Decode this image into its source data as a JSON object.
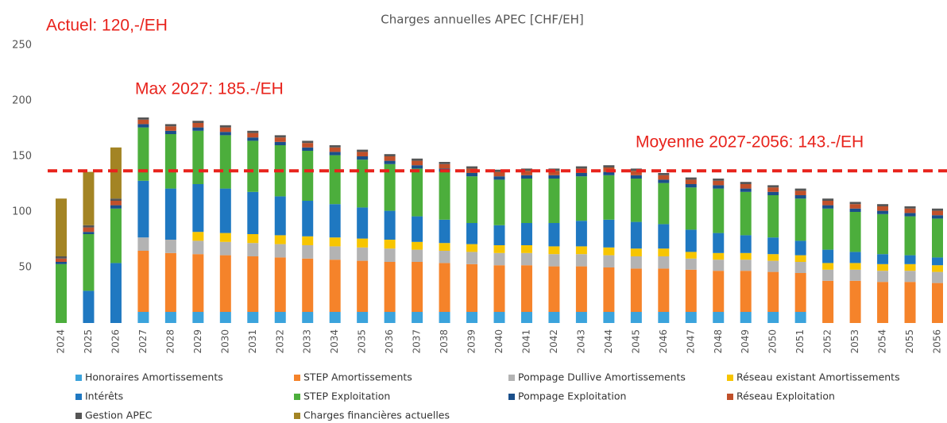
{
  "chart_data": {
    "type": "stacked_bar",
    "title": "Charges annuelles APEC [CHF/EH]",
    "annotations": [
      "Actuel: 120,-/EH",
      "Max 2027: 185.-/EH",
      "Moyenne 2027-2056: 143.-/EH"
    ],
    "reference_line": {
      "value": 137,
      "color": "#e8231c"
    },
    "categories": [
      "2024",
      "2025",
      "2026",
      "2027",
      "2028",
      "2029",
      "2030",
      "2031",
      "2032",
      "2033",
      "2034",
      "2035",
      "2036",
      "2037",
      "2038",
      "2039",
      "2040",
      "2041",
      "2042",
      "2043",
      "2044",
      "2045",
      "2046",
      "2047",
      "2048",
      "2049",
      "2050",
      "2051",
      "2052",
      "2053",
      "2054",
      "2055",
      "2056"
    ],
    "ylim": [
      0,
      250
    ],
    "yticks": [
      50,
      100,
      150,
      200,
      250
    ],
    "grid": false,
    "legend": "bottom",
    "series": [
      {
        "name": "Honoraires Amortissements",
        "color": "#3ba3dc",
        "values": [
          0,
          0,
          0,
          10,
          10,
          10,
          10,
          10,
          10,
          10,
          10,
          10,
          10,
          10,
          10,
          10,
          10,
          10,
          10,
          10,
          10,
          10,
          10,
          10,
          10,
          10,
          10,
          10,
          0,
          0,
          0,
          0,
          0
        ]
      },
      {
        "name": "STEP Amortissements",
        "color": "#f5832a",
        "values": [
          0,
          0,
          0,
          55,
          53,
          52,
          51,
          50,
          49,
          48,
          47,
          46,
          45,
          45,
          44,
          43,
          42,
          42,
          41,
          41,
          40,
          39,
          39,
          38,
          37,
          37,
          36,
          35,
          38,
          38,
          37,
          37,
          36
        ]
      },
      {
        "name": "Pompage Dullive Amortissements",
        "color": "#b3b3b3",
        "values": [
          0,
          0,
          0,
          12,
          12,
          12,
          12,
          12,
          12,
          12,
          12,
          12,
          12,
          11,
          11,
          11,
          11,
          11,
          11,
          11,
          11,
          11,
          11,
          10,
          10,
          10,
          10,
          10,
          10,
          10,
          10,
          10,
          10
        ]
      },
      {
        "name": "Réseau existant Amortissements",
        "color": "#f7c500",
        "values": [
          0,
          0,
          0,
          0,
          0,
          8,
          8,
          8,
          8,
          8,
          8,
          8,
          8,
          7,
          7,
          7,
          7,
          7,
          7,
          7,
          7,
          7,
          7,
          6,
          6,
          6,
          6,
          6,
          6,
          6,
          6,
          6,
          6
        ]
      },
      {
        "name": "Intérêts",
        "color": "#1f78c1",
        "values": [
          0,
          29,
          54,
          51,
          46,
          43,
          40,
          38,
          35,
          32,
          30,
          28,
          26,
          23,
          21,
          19,
          18,
          20,
          21,
          23,
          25,
          24,
          22,
          20,
          18,
          16,
          15,
          13,
          12,
          10,
          9,
          8,
          7
        ]
      },
      {
        "name": "STEP Exploitation",
        "color": "#4cae3c",
        "values": [
          53,
          51,
          49,
          48,
          49,
          48,
          48,
          46,
          46,
          45,
          44,
          43,
          42,
          43,
          43,
          42,
          41,
          40,
          40,
          40,
          40,
          39,
          37,
          38,
          40,
          39,
          38,
          38,
          37,
          36,
          36,
          35,
          35
        ]
      },
      {
        "name": "Pompage Exploitation",
        "color": "#1a4f8a",
        "values": [
          2,
          2,
          3,
          3,
          3,
          3,
          3,
          3,
          3,
          3,
          3,
          3,
          3,
          3,
          3,
          3,
          3,
          3,
          3,
          3,
          3,
          3,
          3,
          3,
          3,
          3,
          3,
          3,
          3,
          3,
          3,
          3,
          3
        ]
      },
      {
        "name": "Réseau Exploitation",
        "color": "#c0502a",
        "values": [
          3,
          4,
          4,
          4,
          4,
          4,
          4,
          4,
          4,
          4,
          4,
          4,
          4,
          4,
          4,
          4,
          4,
          4,
          4,
          4,
          4,
          4,
          4,
          4,
          4,
          4,
          4,
          4,
          4,
          4,
          4,
          4,
          4
        ]
      },
      {
        "name": "Gestion APEC",
        "color": "#555555",
        "values": [
          2,
          2,
          2,
          2,
          2,
          2,
          2,
          2,
          2,
          2,
          2,
          2,
          2,
          2,
          2,
          2,
          2,
          2,
          2,
          2,
          2,
          2,
          2,
          2,
          2,
          2,
          2,
          2,
          2,
          2,
          2,
          2,
          2
        ]
      },
      {
        "name": "Charges financières actuelles",
        "color": "#a38424",
        "values": [
          52,
          48,
          46,
          0,
          0,
          0,
          0,
          0,
          0,
          0,
          0,
          0,
          0,
          0,
          0,
          0,
          0,
          0,
          0,
          0,
          0,
          0,
          0,
          0,
          0,
          0,
          0,
          0,
          0,
          0,
          0,
          0,
          0
        ]
      }
    ]
  }
}
